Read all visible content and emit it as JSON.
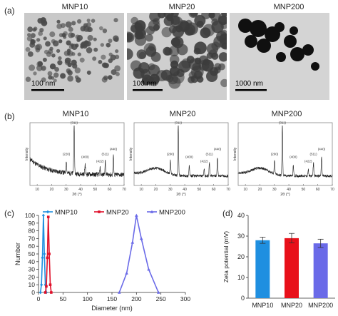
{
  "panels": {
    "a": "(a)",
    "b": "(b)",
    "c": "(c)",
    "d": "(d)"
  },
  "tem": [
    {
      "title": "MNP10",
      "scale_label": "100 nm",
      "bg": "#c9c9c9",
      "particle_color": "#4a4a4a"
    },
    {
      "title": "MNP20",
      "scale_label": "100 nm",
      "bg": "#cfcfcf",
      "particle_color": "#3c3c3c"
    },
    {
      "title": "MNP200",
      "scale_label": "1000 nm",
      "bg": "#d4d4d4",
      "particle_color": "#101010"
    }
  ],
  "chart_data": [
    {
      "type": "line",
      "title": "MNP10",
      "xlabel": "2θ (°)",
      "ylabel": "Intensity",
      "xticks": [
        "10",
        "20",
        "30",
        "40",
        "50",
        "60",
        "70"
      ],
      "xlim": [
        5,
        70
      ],
      "peaks": [
        {
          "x": 30.1,
          "label": "(220)"
        },
        {
          "x": 35.5,
          "label": "(311)"
        },
        {
          "x": 43.1,
          "label": "(400)"
        },
        {
          "x": 53.4,
          "label": "(422)"
        },
        {
          "x": 57.0,
          "label": "(511)"
        },
        {
          "x": 62.6,
          "label": "(440)"
        }
      ]
    },
    {
      "type": "line",
      "title": "MNP20",
      "xlabel": "2θ (°)",
      "ylabel": "Intensity",
      "xticks": [
        "10",
        "20",
        "30",
        "40",
        "50",
        "60",
        "70"
      ],
      "xlim": [
        5,
        70
      ],
      "peaks": [
        {
          "x": 30.1,
          "label": "(200)"
        },
        {
          "x": 35.5,
          "label": "(311)"
        },
        {
          "x": 43.1,
          "label": "(400)"
        },
        {
          "x": 53.4,
          "label": "(422)"
        },
        {
          "x": 57.0,
          "label": "(511)"
        },
        {
          "x": 62.6,
          "label": "(440)"
        }
      ]
    },
    {
      "type": "line",
      "title": "MNP200",
      "xlabel": "2θ (°)",
      "ylabel": "Intensity",
      "xticks": [
        "10",
        "20",
        "30",
        "40",
        "50",
        "60",
        "70"
      ],
      "xlim": [
        5,
        70
      ],
      "peaks": [
        {
          "x": 30.1,
          "label": "(200)"
        },
        {
          "x": 35.5,
          "label": "(311)"
        },
        {
          "x": 43.1,
          "label": "(400)"
        },
        {
          "x": 53.4,
          "label": "(422)"
        },
        {
          "x": 57.0,
          "label": "(511)"
        },
        {
          "x": 62.6,
          "label": "(440)"
        }
      ]
    },
    {
      "type": "line",
      "xlabel": "Diameter (nm)",
      "ylabel": "Number",
      "xlim": [
        0,
        300
      ],
      "ylim": [
        0,
        100
      ],
      "xticks": [
        0,
        50,
        100,
        150,
        200,
        250,
        300
      ],
      "yticks": [
        0,
        10,
        20,
        30,
        40,
        50,
        60,
        70,
        80,
        90,
        100
      ],
      "legend_position": "top",
      "series": [
        {
          "name": "MNP10",
          "color": "#1f8fe0",
          "marker": "diamond",
          "x": [
            4,
            6,
            8,
            10,
            12,
            14,
            16
          ],
          "y": [
            0,
            10,
            45,
            100,
            50,
            10,
            0
          ]
        },
        {
          "name": "MNP20",
          "color": "#e0102a",
          "marker": "square",
          "x": [
            14,
            16,
            18,
            20,
            22,
            24,
            26
          ],
          "y": [
            0,
            8,
            45,
            98,
            50,
            10,
            0
          ]
        },
        {
          "name": "MNP200",
          "color": "#6a6ae8",
          "marker": "triangle",
          "x": [
            165,
            180,
            192,
            200,
            210,
            225,
            245
          ],
          "y": [
            0,
            25,
            65,
            100,
            70,
            30,
            0
          ]
        }
      ]
    },
    {
      "type": "bar",
      "ylabel": "Zeta potential (mV)",
      "ylim": [
        0,
        40
      ],
      "yticks": [
        0,
        10,
        20,
        30,
        40
      ],
      "categories": [
        "MNP10",
        "MNP20",
        "MNP200"
      ],
      "values": [
        28.0,
        29.0,
        26.5
      ],
      "errors": [
        1.5,
        2.3,
        2.0
      ],
      "colors": [
        "#1f8fe0",
        "#e8101a",
        "#6a6ae8"
      ]
    }
  ]
}
